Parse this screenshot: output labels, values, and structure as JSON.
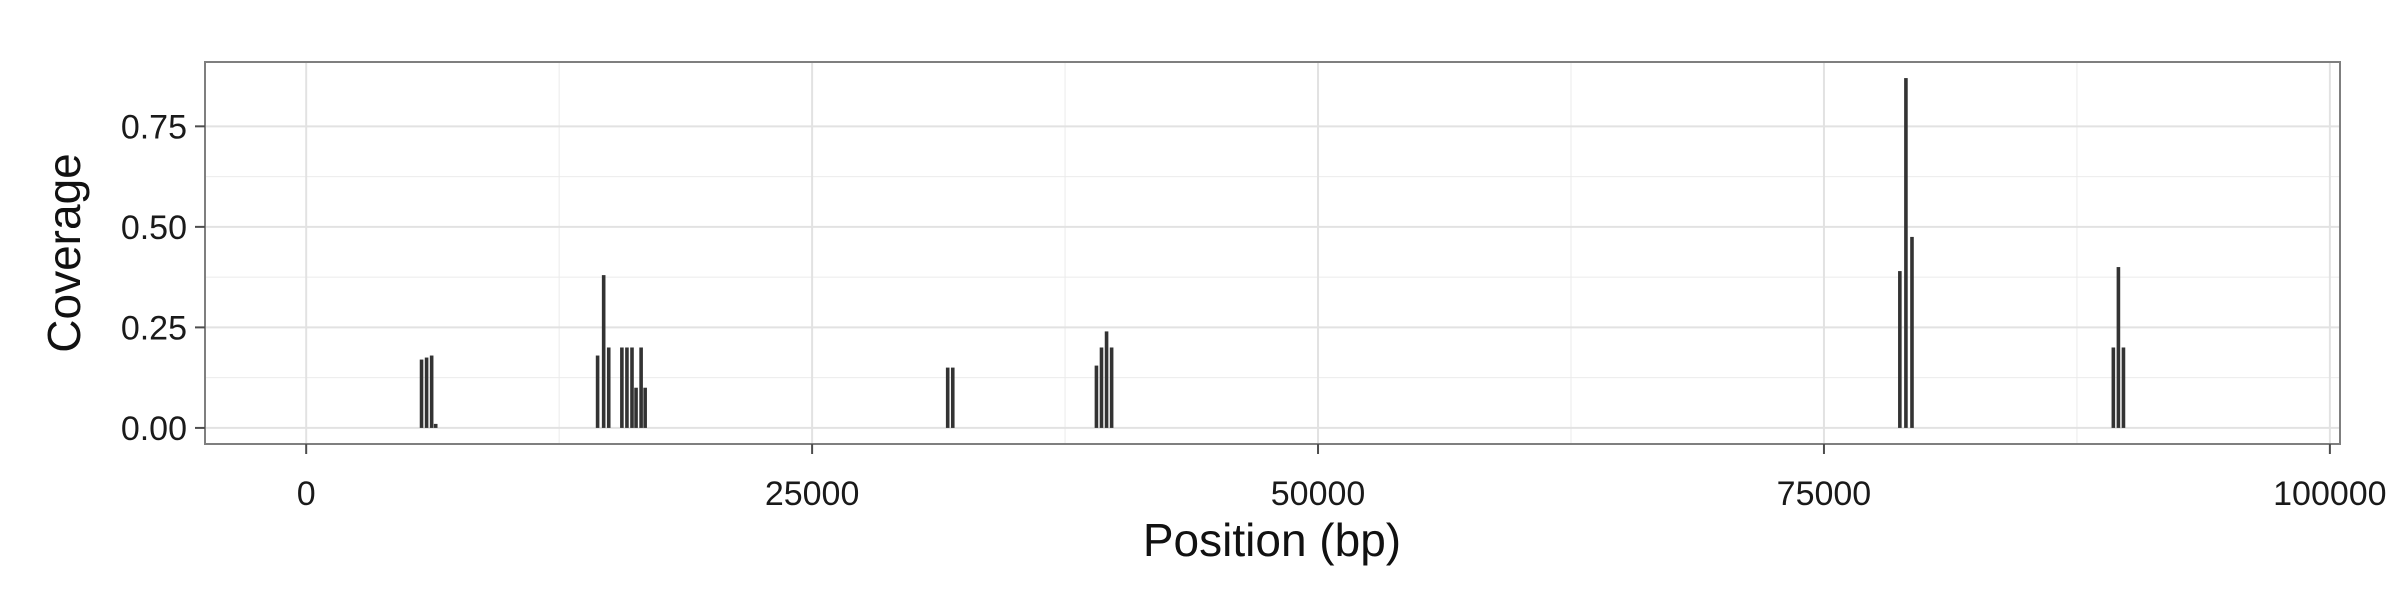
{
  "chart_data": {
    "type": "bar",
    "title": "",
    "xlabel": "Position (bp)",
    "ylabel": "Coverage",
    "xlim": [
      -5000,
      100500
    ],
    "ylim": [
      -0.04,
      0.91
    ],
    "xticks": [
      0,
      25000,
      50000,
      75000,
      100000
    ],
    "xtick_labels": [
      "0",
      "25000",
      "50000",
      "75000",
      "100000"
    ],
    "yticks": [
      0.0,
      0.25,
      0.5,
      0.75
    ],
    "ytick_labels": [
      "0.00",
      "0.25",
      "0.50",
      "0.75"
    ],
    "grid": true,
    "legend": "none",
    "bar_color": "#333333",
    "panel_background": "#ffffff",
    "grid_color": "#ebebeb",
    "border_color": "#7f7f7f",
    "bars": [
      {
        "x": 5700,
        "y": 0.17
      },
      {
        "x": 5950,
        "y": 0.175
      },
      {
        "x": 6200,
        "y": 0.18
      },
      {
        "x": 6400,
        "y": 0.01
      },
      {
        "x": 14400,
        "y": 0.18
      },
      {
        "x": 14700,
        "y": 0.38
      },
      {
        "x": 14950,
        "y": 0.2
      },
      {
        "x": 15600,
        "y": 0.2
      },
      {
        "x": 15850,
        "y": 0.2
      },
      {
        "x": 16100,
        "y": 0.2
      },
      {
        "x": 16300,
        "y": 0.1
      },
      {
        "x": 16550,
        "y": 0.2
      },
      {
        "x": 16750,
        "y": 0.1
      },
      {
        "x": 31700,
        "y": 0.15
      },
      {
        "x": 31950,
        "y": 0.15
      },
      {
        "x": 39050,
        "y": 0.155
      },
      {
        "x": 39300,
        "y": 0.2
      },
      {
        "x": 39550,
        "y": 0.24
      },
      {
        "x": 39800,
        "y": 0.2
      },
      {
        "x": 78750,
        "y": 0.39
      },
      {
        "x": 79050,
        "y": 0.87
      },
      {
        "x": 79350,
        "y": 0.475
      },
      {
        "x": 89300,
        "y": 0.2
      },
      {
        "x": 89550,
        "y": 0.4
      },
      {
        "x": 89800,
        "y": 0.2
      }
    ]
  }
}
